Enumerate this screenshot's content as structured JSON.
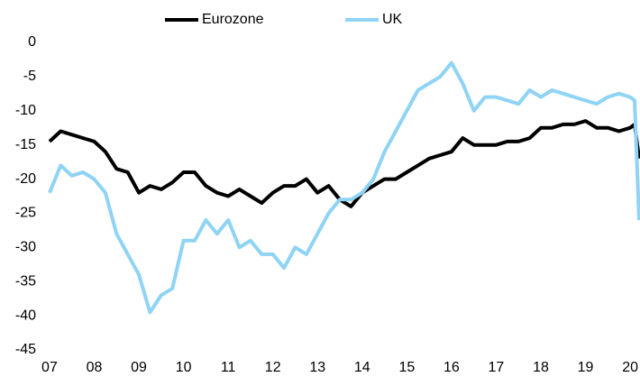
{
  "chart_data": {
    "type": "line",
    "x": [
      2007,
      2007.25,
      2007.5,
      2007.75,
      2008,
      2008.25,
      2008.5,
      2008.75,
      2009,
      2009.25,
      2009.5,
      2009.75,
      2010,
      2010.25,
      2010.5,
      2010.75,
      2011,
      2011.25,
      2011.5,
      2011.75,
      2012,
      2012.25,
      2012.5,
      2012.75,
      2013,
      2013.25,
      2013.5,
      2013.75,
      2014,
      2014.25,
      2014.5,
      2014.75,
      2015,
      2015.25,
      2015.5,
      2015.75,
      2016,
      2016.25,
      2016.5,
      2016.75,
      2017,
      2017.25,
      2017.5,
      2017.75,
      2018,
      2018.25,
      2018.5,
      2018.75,
      2019,
      2019.25,
      2019.5,
      2019.75,
      2020,
      2020.1,
      2020.2
    ],
    "series": [
      {
        "name": "Eurozone",
        "color": "#000000",
        "values": [
          -14.5,
          -13,
          -13.5,
          -14,
          -14.5,
          -16,
          -18.5,
          -19,
          -22,
          -21,
          -21.5,
          -20.5,
          -19,
          -19,
          -21,
          -22,
          -22.5,
          -21.5,
          -22.5,
          -23.5,
          -22,
          -21,
          -21,
          -20,
          -22,
          -21,
          -23,
          -24,
          -22,
          -21,
          -20,
          -20,
          -19,
          -18,
          -17,
          -16.5,
          -16,
          -14,
          -15,
          -15,
          -15,
          -14.5,
          -14.5,
          -14,
          -12.5,
          -12.5,
          -12,
          -12,
          -11.5,
          -12.5,
          -12.5,
          -13,
          -12.5,
          -12,
          -17
        ]
      },
      {
        "name": "UK",
        "color": "#8fd3f5",
        "values": [
          -22,
          -18,
          -19.5,
          -19,
          -20,
          -22,
          -28,
          -31,
          -34,
          -39.5,
          -37,
          -36,
          -29,
          -29,
          -26,
          -28,
          -26,
          -30,
          -29,
          -31,
          -31,
          -33,
          -30,
          -31,
          -28,
          -25,
          -23,
          -23,
          -22,
          -20,
          -16,
          -13,
          -10,
          -7,
          -6,
          -5,
          -3,
          -6,
          -10,
          -8,
          -8,
          -8.5,
          -9,
          -7,
          -8,
          -7,
          -7.5,
          -8,
          -8.5,
          -9,
          -8,
          -7.5,
          -8,
          -8.5,
          -26
        ]
      }
    ],
    "xlim": [
      2006.9,
      2020.2
    ],
    "xticks": [
      {
        "value": 2007,
        "label": "07"
      },
      {
        "value": 2008,
        "label": "08"
      },
      {
        "value": 2009,
        "label": "09"
      },
      {
        "value": 2010,
        "label": "10"
      },
      {
        "value": 2011,
        "label": "11"
      },
      {
        "value": 2012,
        "label": "12"
      },
      {
        "value": 2013,
        "label": "13"
      },
      {
        "value": 2014,
        "label": "14"
      },
      {
        "value": 2015,
        "label": "15"
      },
      {
        "value": 2016,
        "label": "16"
      },
      {
        "value": 2017,
        "label": "17"
      },
      {
        "value": 2018,
        "label": "18"
      },
      {
        "value": 2019,
        "label": "19"
      },
      {
        "value": 2020,
        "label": "20"
      }
    ],
    "ylim": [
      -45,
      0
    ],
    "yticks": [
      0,
      -5,
      -10,
      -15,
      -20,
      -25,
      -30,
      -35,
      -40,
      -45
    ]
  }
}
